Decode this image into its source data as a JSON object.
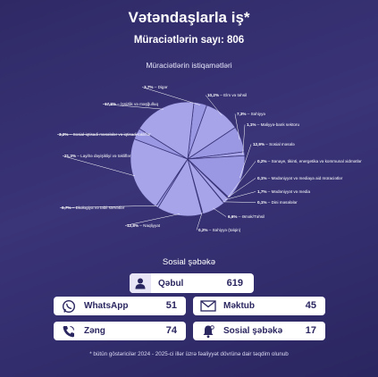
{
  "header": {
    "title": "Vətəndaşlarla iş*",
    "subtitle": "Müraciətlərin sayı: 806"
  },
  "chart_data": {
    "type": "pie",
    "title": "Müraciətlərin istiqamətləri",
    "slices": [
      {
        "label": "Digər",
        "value": 3.7,
        "display": "3,7%"
      },
      {
        "label": "Elm və təhsil",
        "value": 10.2,
        "display": "10,2%"
      },
      {
        "label": "Səhiyyə",
        "value": 7.3,
        "display": "7,3%"
      },
      {
        "label": "Maliyyə-bank sektoru",
        "value": 1.1,
        "display": "1,1%"
      },
      {
        "label": "Sosial məsələ",
        "value": 12.9,
        "display": "12,9%"
      },
      {
        "label": "Sənaye, tikinti, energetika və kommunal xidmətlər",
        "value": 0.2,
        "display": "0,2%"
      },
      {
        "label": "Mədəniyyət və mediaya aid müraciətlər",
        "value": 0.1,
        "display": "0,1%"
      },
      {
        "label": "Mədəniyyət və media",
        "value": 1.7,
        "display": "1,7%"
      },
      {
        "label": "Dini məsələlər",
        "value": 0.1,
        "display": "0,1%"
      },
      {
        "label": "Əmək/Təhsil",
        "value": 6.6,
        "display": "6,6%"
      },
      {
        "label": "Səhiyyə (təlqin)",
        "value": 0.2,
        "display": "0,2%"
      },
      {
        "label": "Nəqliyyat",
        "value": 12.8,
        "display": "12,8%"
      },
      {
        "label": "Ekologiya və təbii sərvətlər",
        "value": 0.7,
        "display": "0,7%"
      },
      {
        "label": "Layihə dəyişikliyi və təkliflər",
        "value": 21.3,
        "display": "21,3%"
      },
      {
        "label": "Sosial-iqtisadi məsələlər və iqtisadi təkliflər",
        "value": 3.2,
        "display": "3,2%"
      },
      {
        "label": "İşsizlik və məşğulluq",
        "value": 17.8,
        "display": "17,8%"
      }
    ],
    "colors": {
      "slice_fill": "#9b98e3",
      "slice_alt": "#a7a4ea",
      "slice_stroke": "#3a3478",
      "background": "#3a3478"
    }
  },
  "social": {
    "title": "Sosial şəbəkə",
    "qebul": {
      "label": "Qəbul",
      "value": "619",
      "icon": "user-icon"
    },
    "items": [
      {
        "label": "WhatsApp",
        "value": "51",
        "icon": "whatsapp-icon"
      },
      {
        "label": "Məktub",
        "value": "45",
        "icon": "envelope-icon"
      },
      {
        "label": "Zəng",
        "value": "74",
        "icon": "phone-icon"
      },
      {
        "label": "Sosial şəbəkə",
        "value": "17",
        "icon": "bell-icon"
      }
    ]
  },
  "footnote": "* bütün göstəricilər 2024 - 2025-ci illər üzrə fəaliyyət dövrünə dair təqdim olunub"
}
